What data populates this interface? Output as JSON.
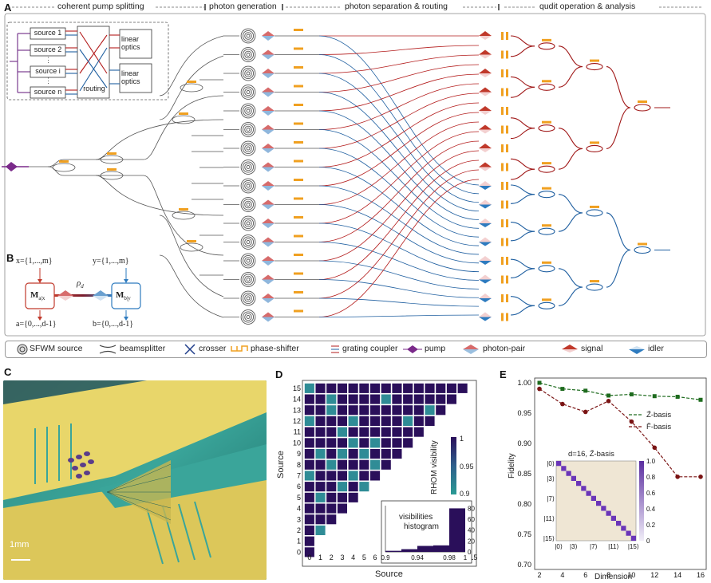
{
  "panelA": {
    "letter": "A",
    "stages": [
      "coherent pump splitting",
      "photon generation",
      "photon separation & routing",
      "qudit operation & analysis"
    ],
    "inset": {
      "sources": [
        "source 1",
        "source 2",
        "source i",
        "source n"
      ],
      "routing_label": "routing",
      "optics_labels": [
        "linear optics",
        "linear optics"
      ]
    }
  },
  "panelB": {
    "letter": "B",
    "x_label": "x={1,...,m}",
    "y_label": "y={1,...,m}",
    "a_label": "a={0,...,d-1}",
    "b_label": "b={0,...,d-1}",
    "M_left": "M",
    "M_left_sub": "a|x",
    "M_right": "M",
    "M_right_sub": "b|y",
    "rho": "ρ",
    "rho_sub": "d"
  },
  "legend": {
    "items": [
      "SFWM source",
      "beamsplitter",
      "crosser",
      "phase-shifter",
      "grating coupler",
      "pump",
      "photon-pair",
      "signal",
      "idler"
    ]
  },
  "panelC": {
    "letter": "C",
    "scale_label": "1mm"
  },
  "panelD": {
    "letter": "D",
    "xlabel": "Source",
    "ylabel": "Source",
    "colorbar_label": "RHOM visibility",
    "colorbar_ticks": [
      "1",
      "0.95",
      "0.9"
    ],
    "inset_title_1": "visibilities",
    "inset_title_2": "histogram",
    "inset_x_ticks": [
      "0.9",
      "0.94",
      "0.98",
      "1"
    ],
    "inset_y_ticks": [
      "80",
      "60",
      "40",
      "20",
      "0"
    ]
  },
  "panelE": {
    "letter": "E"
  },
  "chart_data": [
    {
      "type": "heatmap",
      "xlabel": "Source",
      "ylabel": "Source",
      "x_ticks": [
        "0",
        "1",
        "2",
        "3",
        "4",
        "5",
        "6",
        "7",
        "8",
        "9",
        "10",
        "11",
        "12",
        "13",
        "14",
        "15"
      ],
      "y_ticks": [
        "0",
        "1",
        "2",
        "3",
        "4",
        "5",
        "6",
        "7",
        "8",
        "9",
        "10",
        "11",
        "12",
        "13",
        "14",
        "15"
      ],
      "value_range": [
        0.9,
        1.0
      ],
      "note_lower_triangle_cells": "cells with column < row are filled; teal cells lower visibility",
      "teal_cells": [
        [
          15,
          0
        ],
        [
          14,
          2
        ],
        [
          14,
          7
        ],
        [
          13,
          2
        ],
        [
          13,
          11
        ],
        [
          12,
          0
        ],
        [
          12,
          4
        ],
        [
          12,
          9
        ],
        [
          11,
          3
        ],
        [
          10,
          4
        ],
        [
          10,
          6
        ],
        [
          9,
          1
        ],
        [
          9,
          3
        ],
        [
          9,
          5
        ],
        [
          8,
          2
        ],
        [
          8,
          6
        ],
        [
          7,
          0
        ],
        [
          7,
          4
        ],
        [
          6,
          3
        ],
        [
          6,
          5
        ],
        [
          5,
          1
        ],
        [
          2,
          1
        ]
      ]
    },
    {
      "type": "bar",
      "title": "visibilities histogram",
      "xlim": [
        0.9,
        1.0
      ],
      "ylim": [
        0,
        85
      ],
      "bins": [
        0.9,
        0.92,
        0.94,
        0.96,
        0.98
      ],
      "values": [
        2,
        5,
        11,
        12,
        80
      ]
    },
    {
      "type": "line",
      "xlabel": "Dimension",
      "ylabel": "Fidelity",
      "x": [
        2,
        4,
        6,
        8,
        10,
        12,
        14,
        16
      ],
      "ylim": [
        0.7,
        1.0
      ],
      "x_ticks": [
        "2",
        "4",
        "6",
        "8",
        "10",
        "12",
        "14",
        "16"
      ],
      "y_ticks": [
        "0.70",
        "0.75",
        "0.80",
        "0.85",
        "0.90",
        "0.95",
        "1.00"
      ],
      "legend_placement": "right",
      "series": [
        {
          "name": "Z̄-basis",
          "color": "#1e6b1e",
          "values": [
            1.0,
            0.99,
            0.987,
            0.979,
            0.981,
            0.978,
            0.977,
            0.972
          ]
        },
        {
          "name": "F̄-basis",
          "color": "#7a1414",
          "values": [
            0.99,
            0.965,
            0.952,
            0.97,
            0.936,
            0.893,
            0.845,
            0.845
          ]
        }
      ]
    },
    {
      "type": "heatmap",
      "title": "d=16, Z̄-basis",
      "y_ticks": [
        "|0⟩",
        "|3⟩",
        "|7⟩",
        "|11⟩",
        "|15⟩"
      ],
      "x_ticks": [
        "|0⟩",
        "|3⟩",
        "|7⟩",
        "|11⟩",
        "|15⟩"
      ],
      "colorbar_ticks": [
        "1.0",
        "0.8",
        "0.6",
        "0.4",
        "0.2",
        "0"
      ],
      "note": "diagonal cells ≈ 1, off-diagonal ≈ 0"
    }
  ]
}
